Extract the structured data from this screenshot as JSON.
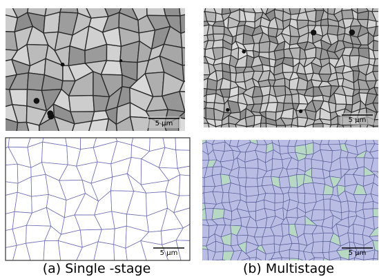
{
  "columns": [
    {
      "caption": "(a) Single -stage",
      "scale_bars": [
        "5 μm",
        "5 μm"
      ]
    },
    {
      "caption": "(b) Multistage",
      "scale_bars": [
        "5 μm",
        "5 μm"
      ]
    }
  ]
}
